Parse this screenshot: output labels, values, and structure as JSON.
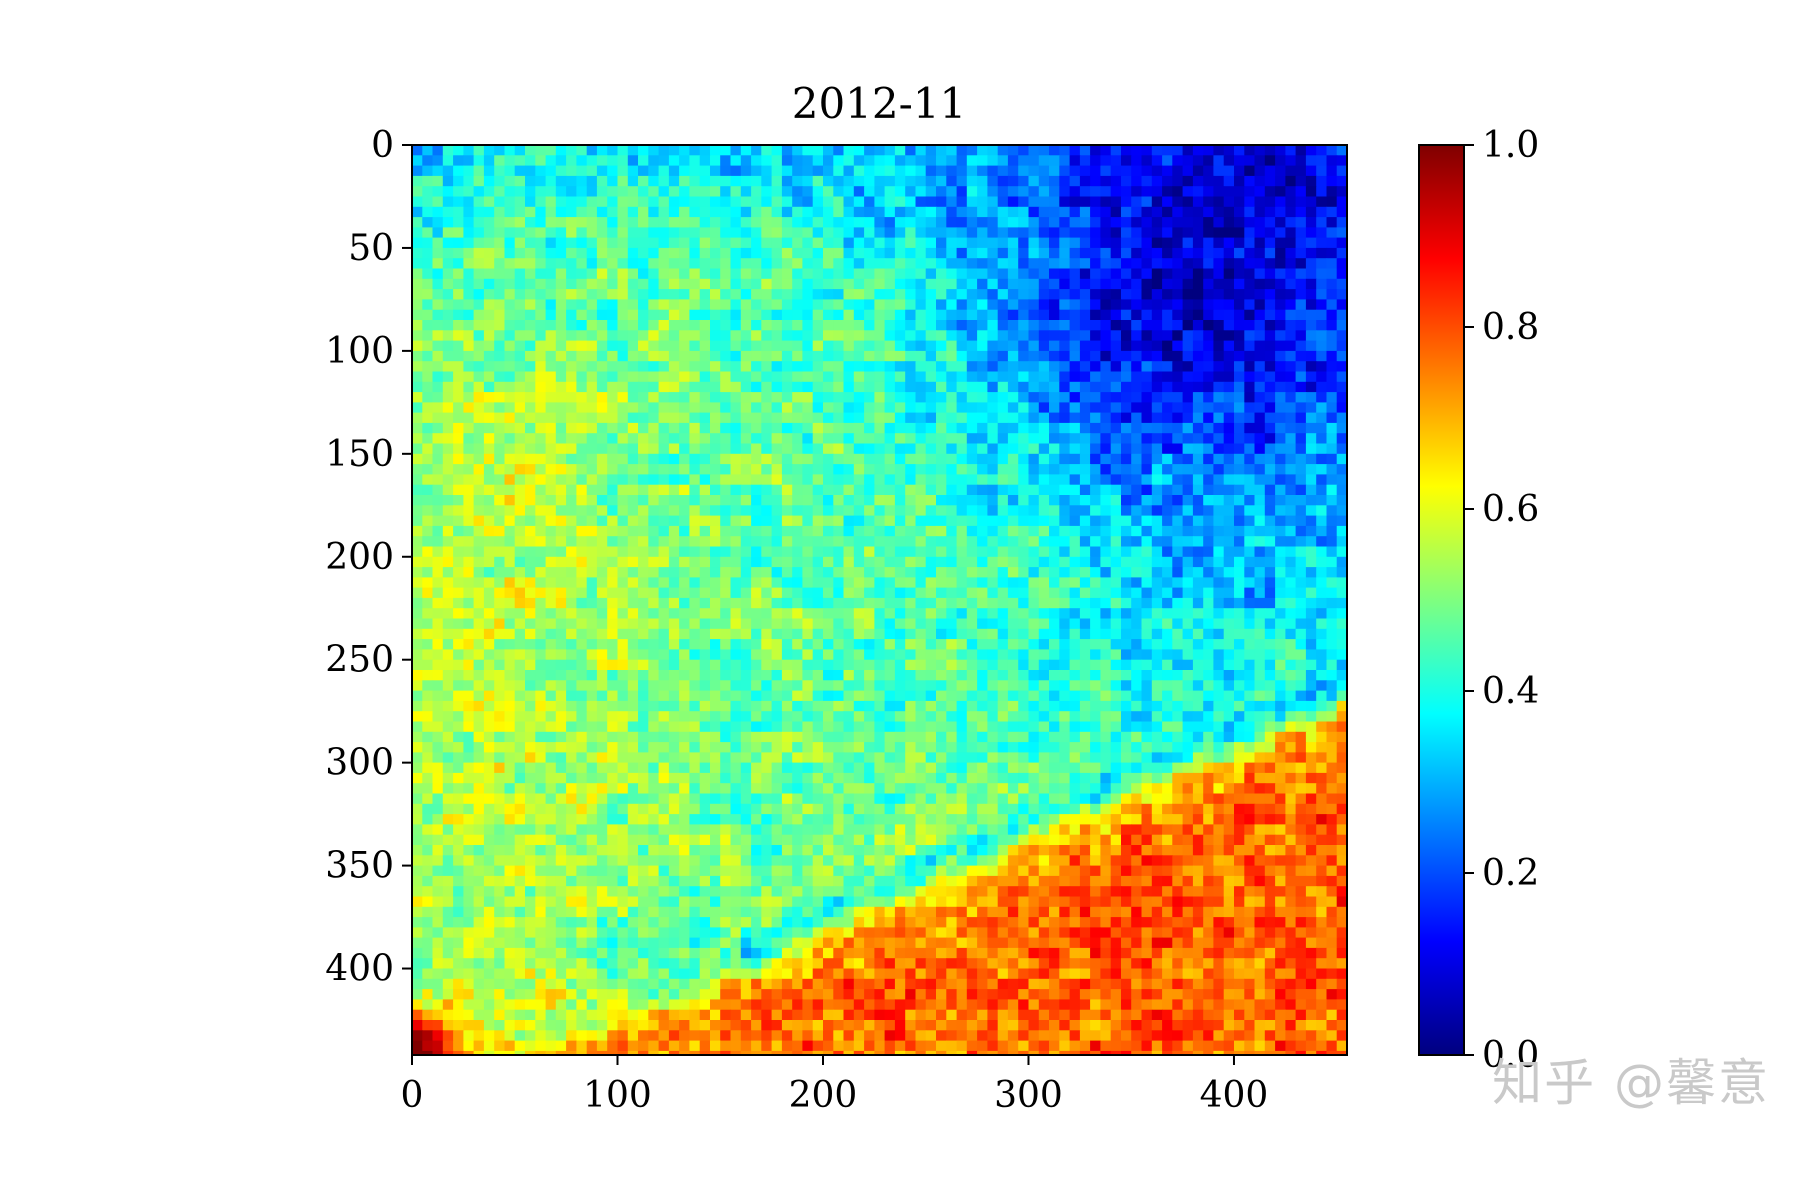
{
  "watermark_text": "知乎 @馨意",
  "chart_data": {
    "type": "heatmap",
    "title": "2012-11",
    "xlabel": "",
    "ylabel": "",
    "xlim": [
      0,
      455
    ],
    "ylim": [
      442,
      0
    ],
    "y_axis_inverted": true,
    "xticks": [
      0,
      100,
      200,
      300,
      400
    ],
    "yticks": [
      0,
      50,
      100,
      150,
      200,
      250,
      300,
      350,
      400
    ],
    "grid": false,
    "colormap": "jet",
    "colorbar": {
      "range": [
        0.0,
        1.0
      ],
      "ticks": [
        "0.0",
        "0.2",
        "0.4",
        "0.6",
        "0.8",
        "1.0"
      ],
      "placement": "right",
      "stops": [
        "#00007f",
        "#0000ff",
        "#007fff",
        "#00ffff",
        "#7fff7f",
        "#ffff00",
        "#ff7f00",
        "#ff0000",
        "#7f0000"
      ]
    },
    "approx_region_values": [
      {
        "region": "upper-left band",
        "x": [
          0,
          250
        ],
        "y": [
          0,
          50
        ],
        "value": 0.35
      },
      {
        "region": "upper-right low",
        "x": [
          270,
          455
        ],
        "y": [
          20,
          150
        ],
        "value": 0.22
      },
      {
        "region": "right-middle",
        "x": [
          300,
          455
        ],
        "y": [
          150,
          330
        ],
        "value": 0.33
      },
      {
        "region": "central plateau",
        "x": [
          80,
          300
        ],
        "y": [
          100,
          360
        ],
        "value": 0.47
      },
      {
        "region": "left band",
        "x": [
          0,
          120
        ],
        "y": [
          150,
          400
        ],
        "value": 0.56
      },
      {
        "region": "lower-right high",
        "x": [
          200,
          455
        ],
        "y": [
          330,
          442
        ],
        "value": 0.78
      },
      {
        "region": "lower-left corner",
        "x": [
          0,
          30
        ],
        "y": [
          410,
          442
        ],
        "value": 0.9
      }
    ]
  }
}
